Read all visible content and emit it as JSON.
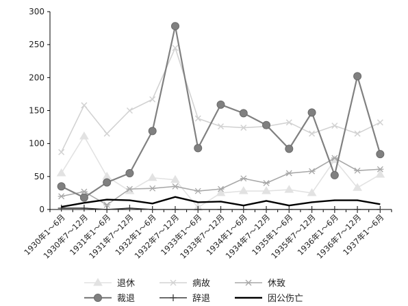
{
  "chart_data": {
    "type": "line",
    "title": "",
    "xlabel": "",
    "ylabel": "",
    "ylim": [
      0,
      300
    ],
    "yticks": [
      0,
      50,
      100,
      150,
      200,
      250,
      300
    ],
    "grid": false,
    "legend_position": "bottom",
    "categories": [
      "1930年1～6月",
      "1930年7～12月",
      "1931年1～6月",
      "1931年7～12月",
      "1932年1～6月",
      "1932年7～12月",
      "1933年1～6月",
      "1933年7～12月",
      "1934年1～6月",
      "1934年7～12月",
      "1935年1～6月",
      "1935年7～12月",
      "1936年1～6月",
      "1936年7～12月",
      "1937年1～6月"
    ],
    "series": [
      {
        "name": "退休",
        "marker": "triangle",
        "color": "#e2e2e2",
        "values": [
          55,
          111,
          50,
          28,
          48,
          45,
          3,
          25,
          28,
          28,
          30,
          25,
          75,
          33,
          53
        ]
      },
      {
        "name": "病故",
        "marker": "x",
        "color": "#d2d2d2",
        "values": [
          87,
          158,
          115,
          150,
          167,
          245,
          138,
          126,
          124,
          126,
          132,
          115,
          127,
          115,
          132
        ]
      },
      {
        "name": "休致",
        "marker": "asterisk",
        "color": "#a8a8a8",
        "values": [
          20,
          27,
          7,
          31,
          32,
          35,
          28,
          31,
          47,
          40,
          55,
          58,
          78,
          59,
          61
        ]
      },
      {
        "name": "裁退",
        "marker": "circle",
        "color": "#808080",
        "values": [
          35,
          18,
          41,
          55,
          119,
          278,
          93,
          159,
          146,
          128,
          92,
          147,
          52,
          202,
          84
        ]
      },
      {
        "name": "辞退",
        "marker": "plus",
        "color": "#3a3a3a",
        "values": [
          2,
          2,
          0,
          2,
          0,
          0,
          0,
          0,
          0,
          0,
          0,
          0,
          0,
          0,
          0
        ]
      },
      {
        "name": "因公伤亡",
        "marker": "none",
        "color": "#000000",
        "values": [
          4,
          10,
          15,
          14,
          9,
          19,
          11,
          12,
          6,
          13,
          6,
          11,
          14,
          14,
          8
        ]
      }
    ]
  }
}
